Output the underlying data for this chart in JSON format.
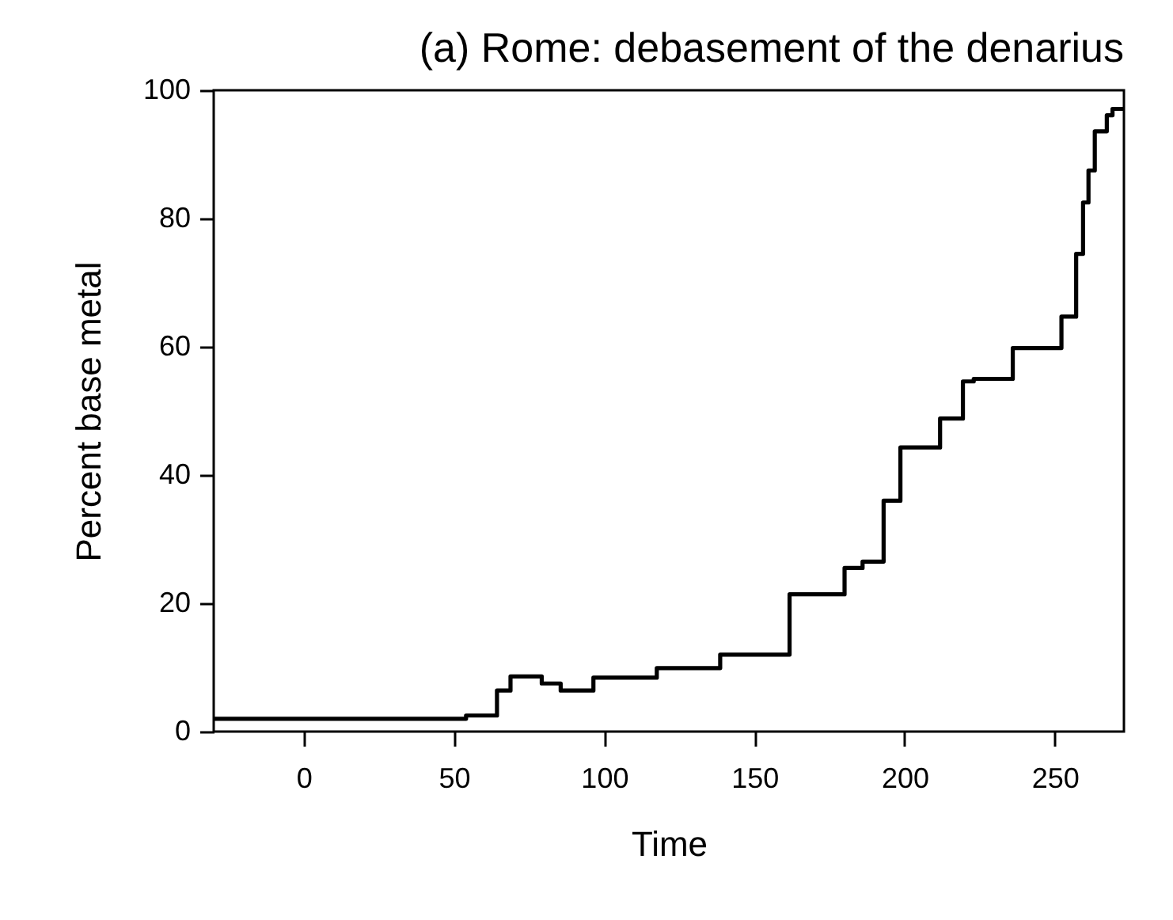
{
  "chart_data": {
    "type": "step",
    "title": "(a) Rome: debasement of the denarius",
    "xlabel": "Time",
    "ylabel": "Percent base metal",
    "xlim": [
      -30,
      273
    ],
    "xticks": [
      0,
      50,
      100,
      150,
      200,
      250
    ],
    "ylim": [
      0,
      100
    ],
    "yticks": [
      0,
      20,
      40,
      60,
      80,
      100
    ],
    "grid": false,
    "series": [
      {
        "color": "#000000",
        "x": [
          -30,
          54,
          64.3,
          68.8,
          79.2,
          85.5,
          96.4,
          117.5,
          138.6,
          161.7,
          180,
          186,
          193,
          198.6,
          211.8,
          219.4,
          223,
          236,
          252.2,
          257.1,
          259.4,
          261.2,
          263.3,
          267.3,
          269.2,
          273
        ],
        "values": [
          2,
          2.5,
          6.4,
          8.6,
          7.5,
          6.4,
          8.4,
          9.9,
          12,
          21.4,
          25.5,
          26.5,
          36,
          44.3,
          48.8,
          54.6,
          55,
          59.8,
          64.7,
          74.5,
          82.5,
          87.5,
          93.6,
          96.1,
          97.1,
          97.1
        ]
      }
    ]
  }
}
